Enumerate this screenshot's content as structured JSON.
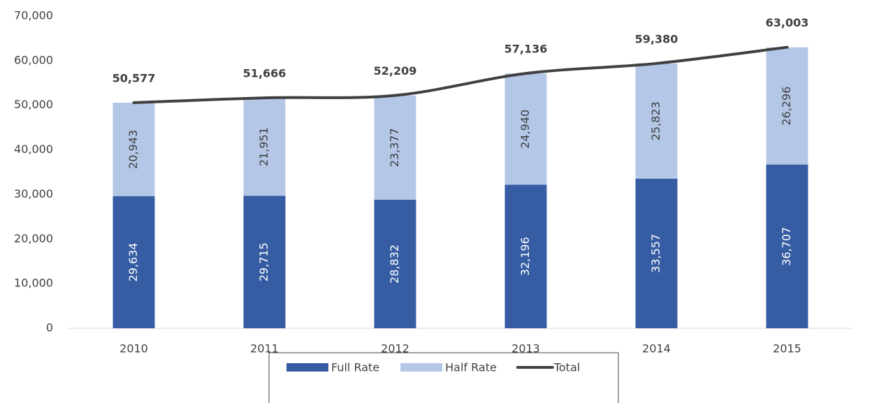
{
  "chart_data": {
    "type": "bar",
    "stacked": true,
    "categories": [
      "2010",
      "2011",
      "2012",
      "2013",
      "2014",
      "2015"
    ],
    "series": [
      {
        "name": "Full Rate",
        "color": "#365da3",
        "values": [
          29634,
          29715,
          28832,
          32196,
          33557,
          36707
        ],
        "value_labels": [
          "29,634",
          "29,715",
          "28,832",
          "32,196",
          "33,557",
          "36,707"
        ]
      },
      {
        "name": "Half Rate",
        "color": "#b4c7e7",
        "values": [
          20943,
          21951,
          23377,
          24940,
          25823,
          26296
        ],
        "value_labels": [
          "20,943",
          "21,951",
          "23,377",
          "24,940",
          "25,823",
          "26,296"
        ]
      },
      {
        "name": "Total",
        "type": "line",
        "color": "#404040",
        "values": [
          50577,
          51666,
          52209,
          57136,
          59380,
          63003
        ],
        "value_labels": [
          "50,577",
          "51,666",
          "52,209",
          "57,136",
          "59,380",
          "63,003"
        ]
      }
    ],
    "ylim": [
      0,
      70000
    ],
    "yticks": [
      0,
      {
        "value": 10000,
        "label": "10,000"
      },
      {
        "value": 20000,
        "label": "20,000"
      },
      {
        "value": 30000,
        "label": "30,000"
      },
      {
        "value": 40000,
        "label": "40,000"
      },
      {
        "value": 50000,
        "label": "50,000"
      },
      {
        "value": 60000,
        "label": "60,000"
      },
      {
        "value": 70000,
        "label": "70,000"
      }
    ],
    "grid": false,
    "legend": "bottom"
  }
}
